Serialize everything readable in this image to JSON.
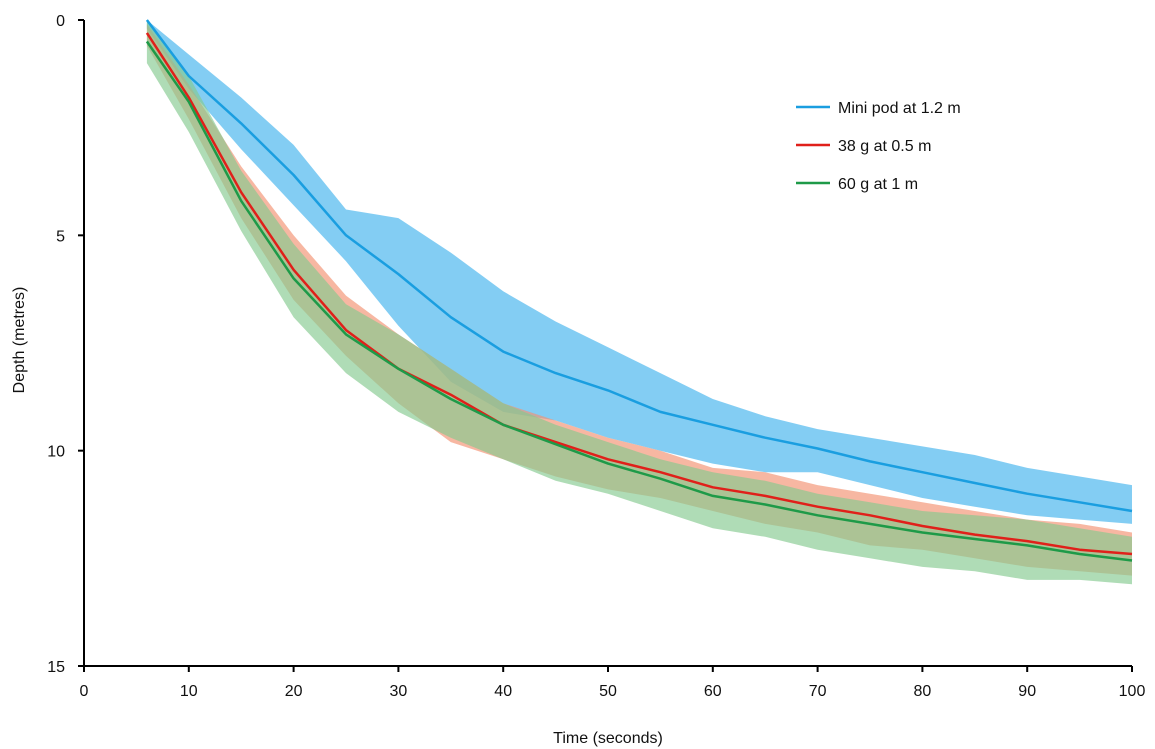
{
  "chart_data": {
    "type": "line",
    "xlabel": "Time (seconds)",
    "ylabel": "Depth (metres)",
    "xlim": [
      0,
      100
    ],
    "ylim": [
      0,
      15
    ],
    "y_inverted": true,
    "x_ticks": [
      0,
      10,
      20,
      30,
      40,
      50,
      60,
      70,
      80,
      90,
      100
    ],
    "y_ticks": [
      0,
      5,
      10,
      15
    ],
    "grid": false,
    "legend_position": "top-right",
    "series": [
      {
        "name": "Mini pod at 1.2 m",
        "color": "#1a9ee0",
        "band_color": "#76c8f2",
        "x": [
          6,
          10,
          15,
          20,
          25,
          30,
          35,
          40,
          45,
          50,
          55,
          60,
          65,
          70,
          75,
          80,
          85,
          90,
          95,
          100
        ],
        "y": [
          0.0,
          1.3,
          2.4,
          3.6,
          5.0,
          5.9,
          6.9,
          7.7,
          8.2,
          8.6,
          9.1,
          9.4,
          9.7,
          9.95,
          10.25,
          10.5,
          10.75,
          11.0,
          11.2,
          11.4
        ],
        "lower": [
          0.0,
          0.8,
          1.8,
          2.9,
          4.4,
          4.6,
          5.4,
          6.3,
          7.0,
          7.6,
          8.2,
          8.8,
          9.2,
          9.5,
          9.7,
          9.9,
          10.1,
          10.4,
          10.6,
          10.8
        ],
        "upper": [
          0.2,
          1.6,
          3.0,
          4.3,
          5.6,
          7.1,
          8.4,
          9.1,
          9.3,
          9.7,
          10.0,
          10.3,
          10.5,
          10.5,
          10.8,
          11.1,
          11.3,
          11.5,
          11.6,
          11.7
        ]
      },
      {
        "name": "38 g at 0.5 m",
        "color": "#e0201a",
        "band_color": "#f39070",
        "x": [
          6,
          10,
          15,
          20,
          25,
          30,
          35,
          40,
          45,
          50,
          55,
          60,
          65,
          70,
          75,
          80,
          85,
          90,
          95,
          100
        ],
        "y": [
          0.3,
          1.8,
          4.0,
          5.8,
          7.2,
          8.1,
          8.7,
          9.4,
          9.8,
          10.2,
          10.5,
          10.85,
          11.05,
          11.3,
          11.5,
          11.75,
          11.95,
          12.1,
          12.3,
          12.4
        ],
        "lower": [
          0.1,
          1.5,
          3.4,
          5.0,
          6.4,
          7.3,
          8.1,
          8.9,
          9.3,
          9.7,
          10.0,
          10.4,
          10.5,
          10.8,
          11.0,
          11.2,
          11.4,
          11.6,
          11.7,
          11.9
        ],
        "upper": [
          0.6,
          2.3,
          4.6,
          6.5,
          7.8,
          8.9,
          9.8,
          10.2,
          10.6,
          10.9,
          11.1,
          11.4,
          11.7,
          11.9,
          12.2,
          12.3,
          12.5,
          12.7,
          12.8,
          12.9
        ]
      },
      {
        "name": "60 g at 1 m",
        "color": "#1e9a48",
        "band_color": "#84c98f",
        "x": [
          6,
          10,
          15,
          20,
          25,
          30,
          35,
          40,
          45,
          50,
          55,
          60,
          65,
          70,
          75,
          80,
          85,
          90,
          95,
          100
        ],
        "y": [
          0.5,
          1.9,
          4.2,
          6.0,
          7.3,
          8.1,
          8.8,
          9.4,
          9.85,
          10.3,
          10.65,
          11.05,
          11.25,
          11.5,
          11.7,
          11.9,
          12.05,
          12.2,
          12.4,
          12.55
        ],
        "lower": [
          0.0,
          1.3,
          3.5,
          5.2,
          6.6,
          7.3,
          8.1,
          8.9,
          9.4,
          9.8,
          10.2,
          10.5,
          10.7,
          11.0,
          11.2,
          11.4,
          11.5,
          11.6,
          11.8,
          12.0
        ],
        "upper": [
          1.0,
          2.6,
          4.9,
          6.9,
          8.2,
          9.1,
          9.7,
          10.2,
          10.7,
          11.0,
          11.4,
          11.8,
          12.0,
          12.3,
          12.5,
          12.7,
          12.8,
          13.0,
          13.0,
          13.1
        ]
      }
    ]
  }
}
